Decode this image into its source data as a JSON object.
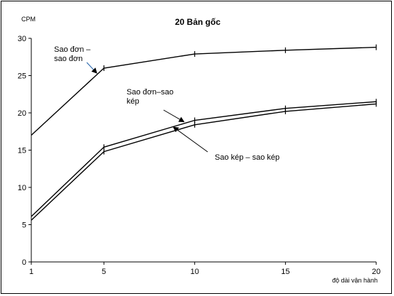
{
  "chart_data": {
    "type": "line",
    "title": "20 Bản gốc",
    "ylabel": "CPM",
    "xlabel": "độ dài vận hành",
    "x": [
      1,
      5,
      10,
      15,
      20
    ],
    "x_ticks": [
      "1",
      "5",
      "10",
      "15",
      "20"
    ],
    "y_ticks": [
      "0",
      "5",
      "10",
      "15",
      "20",
      "25",
      "30"
    ],
    "xlim": [
      1,
      20
    ],
    "ylim": [
      0,
      30
    ],
    "grid": false,
    "series": [
      {
        "values": [
          17,
          26,
          27.9,
          28.4,
          28.8
        ]
      },
      {
        "values": [
          6.1,
          15.4,
          19.0,
          20.6,
          21.5
        ]
      },
      {
        "values": [
          5.6,
          14.8,
          18.4,
          20.2,
          21.2
        ]
      }
    ],
    "annotations": [
      {
        "lines": [
          "Sao đơn –",
          "sao đơn"
        ],
        "arrow_to": [
          5,
          25.9
        ]
      },
      {
        "lines": [
          "Sao đơn–sao",
          "kép"
        ],
        "arrow_to": [
          10,
          18.8
        ]
      },
      {
        "lines": [
          "Sao kép – sao kép"
        ],
        "arrow_to": [
          10,
          18.1
        ]
      }
    ]
  }
}
